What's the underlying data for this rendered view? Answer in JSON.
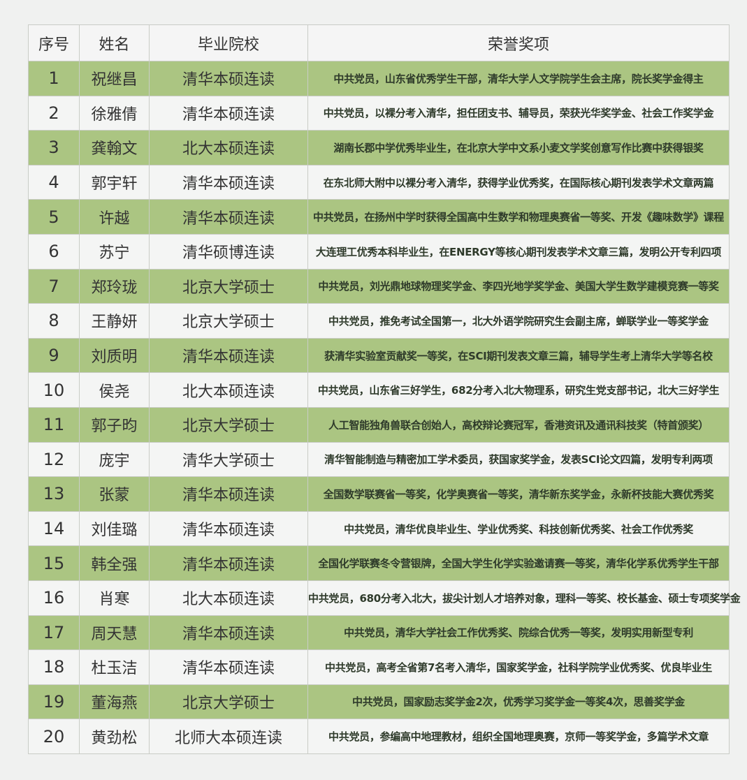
{
  "table": {
    "headers": [
      "序号",
      "姓名",
      "毕业院校",
      "荣誉奖项"
    ],
    "row_colors": {
      "odd": "#abc582",
      "even": "#f4f5f4"
    },
    "rows": [
      {
        "no": "1",
        "name": "祝继昌",
        "school": "清华本硕连读",
        "honor": "中共党员，山东省优秀学生干部，清华大学人文学院学生会主席，院长奖学金得主"
      },
      {
        "no": "2",
        "name": "徐雅倩",
        "school": "清华本硕连读",
        "honor": "中共党员，以裸分考入清华，担任团支书、辅导员，荣获光华奖学金、社会工作奖学金"
      },
      {
        "no": "3",
        "name": "龚翰文",
        "school": "北大本硕连读",
        "honor": "湖南长郡中学优秀毕业生，在北京大学中文系小麦文学奖创意写作比赛中获得银奖"
      },
      {
        "no": "4",
        "name": "郭宇轩",
        "school": "清华本硕连读",
        "honor": "在东北师大附中以裸分考入清华，获得学业优秀奖，在国际核心期刊发表学术文章两篇"
      },
      {
        "no": "5",
        "name": "许越",
        "school": "清华本硕连读",
        "honor": "中共党员，在扬州中学时获得全国高中生数学和物理奥赛省一等奖、开发《趣味数学》课程"
      },
      {
        "no": "6",
        "name": "苏宁",
        "school": "清华硕博连读",
        "honor": "大连理工优秀本科毕业生，在ENERGY等核心期刊发表学术文章三篇，发明公开专利四项"
      },
      {
        "no": "7",
        "name": "郑玲珑",
        "school": "北京大学硕士",
        "honor": "中共党员，刘光鼎地球物理奖学金、李四光地学奖学金、美国大学生数学建模竞赛一等奖"
      },
      {
        "no": "8",
        "name": "王静妍",
        "school": "北京大学硕士",
        "honor": "中共党员，推免考试全国第一，北大外语学院研究生会副主席，蝉联学业一等奖学金"
      },
      {
        "no": "9",
        "name": "刘质明",
        "school": "清华本硕连读",
        "honor": "获清华实验室贡献奖一等奖，在SCI期刊发表文章三篇，辅导学生考上清华大学等名校"
      },
      {
        "no": "10",
        "name": "侯尧",
        "school": "北大本硕连读",
        "honor": "中共党员，山东省三好学生，682分考入北大物理系，研究生党支部书记，北大三好学生"
      },
      {
        "no": "11",
        "name": "郭子昀",
        "school": "北京大学硕士",
        "honor": "人工智能独角兽联合创始人，高校辩论赛冠军，香港资讯及通讯科技奖（特首颁奖）"
      },
      {
        "no": "12",
        "name": "庞宇",
        "school": "清华大学硕士",
        "honor": "清华智能制造与精密加工学术委员，获国家奖学金，发表SCI论文四篇，发明专利两项"
      },
      {
        "no": "13",
        "name": "张蒙",
        "school": "清华本硕连读",
        "honor": "全国数学联赛省一等奖，化学奥赛省一等奖，清华新东奖学金，永新杯技能大赛优秀奖"
      },
      {
        "no": "14",
        "name": "刘佳璐",
        "school": "清华本硕连读",
        "honor": "中共党员，清华优良毕业生、学业优秀奖、科技创新优秀奖、社会工作优秀奖"
      },
      {
        "no": "15",
        "name": "韩全强",
        "school": "清华本硕连读",
        "honor": "全国化学联赛冬令营银牌，全国大学生化学实验邀请赛一等奖，清华化学系优秀学生干部"
      },
      {
        "no": "16",
        "name": "肖寒",
        "school": "北大本硕连读",
        "honor": "中共党员，680分考入北大，拔尖计划人才培养对象，理科一等奖、校长基金、硕士专项奖学金"
      },
      {
        "no": "17",
        "name": "周天慧",
        "school": "清华本硕连读",
        "honor": "中共党员，清华大学社会工作优秀奖、院综合优秀一等奖，发明实用新型专利"
      },
      {
        "no": "18",
        "name": "杜玉洁",
        "school": "清华本硕连读",
        "honor": "中共党员，高考全省第7名考入清华，国家奖学金，社科学院学业优秀奖、优良毕业生"
      },
      {
        "no": "19",
        "name": "董海燕",
        "school": "北京大学硕士",
        "honor": "中共党员，国家励志奖学金2次，优秀学习奖学金一等奖4次，思善奖学金"
      },
      {
        "no": "20",
        "name": "黄劲松",
        "school": "北师大本硕连读",
        "honor": "中共党员，参编高中地理教材，组织全国地理奥赛，京师一等奖学金，多篇学术文章"
      }
    ]
  }
}
